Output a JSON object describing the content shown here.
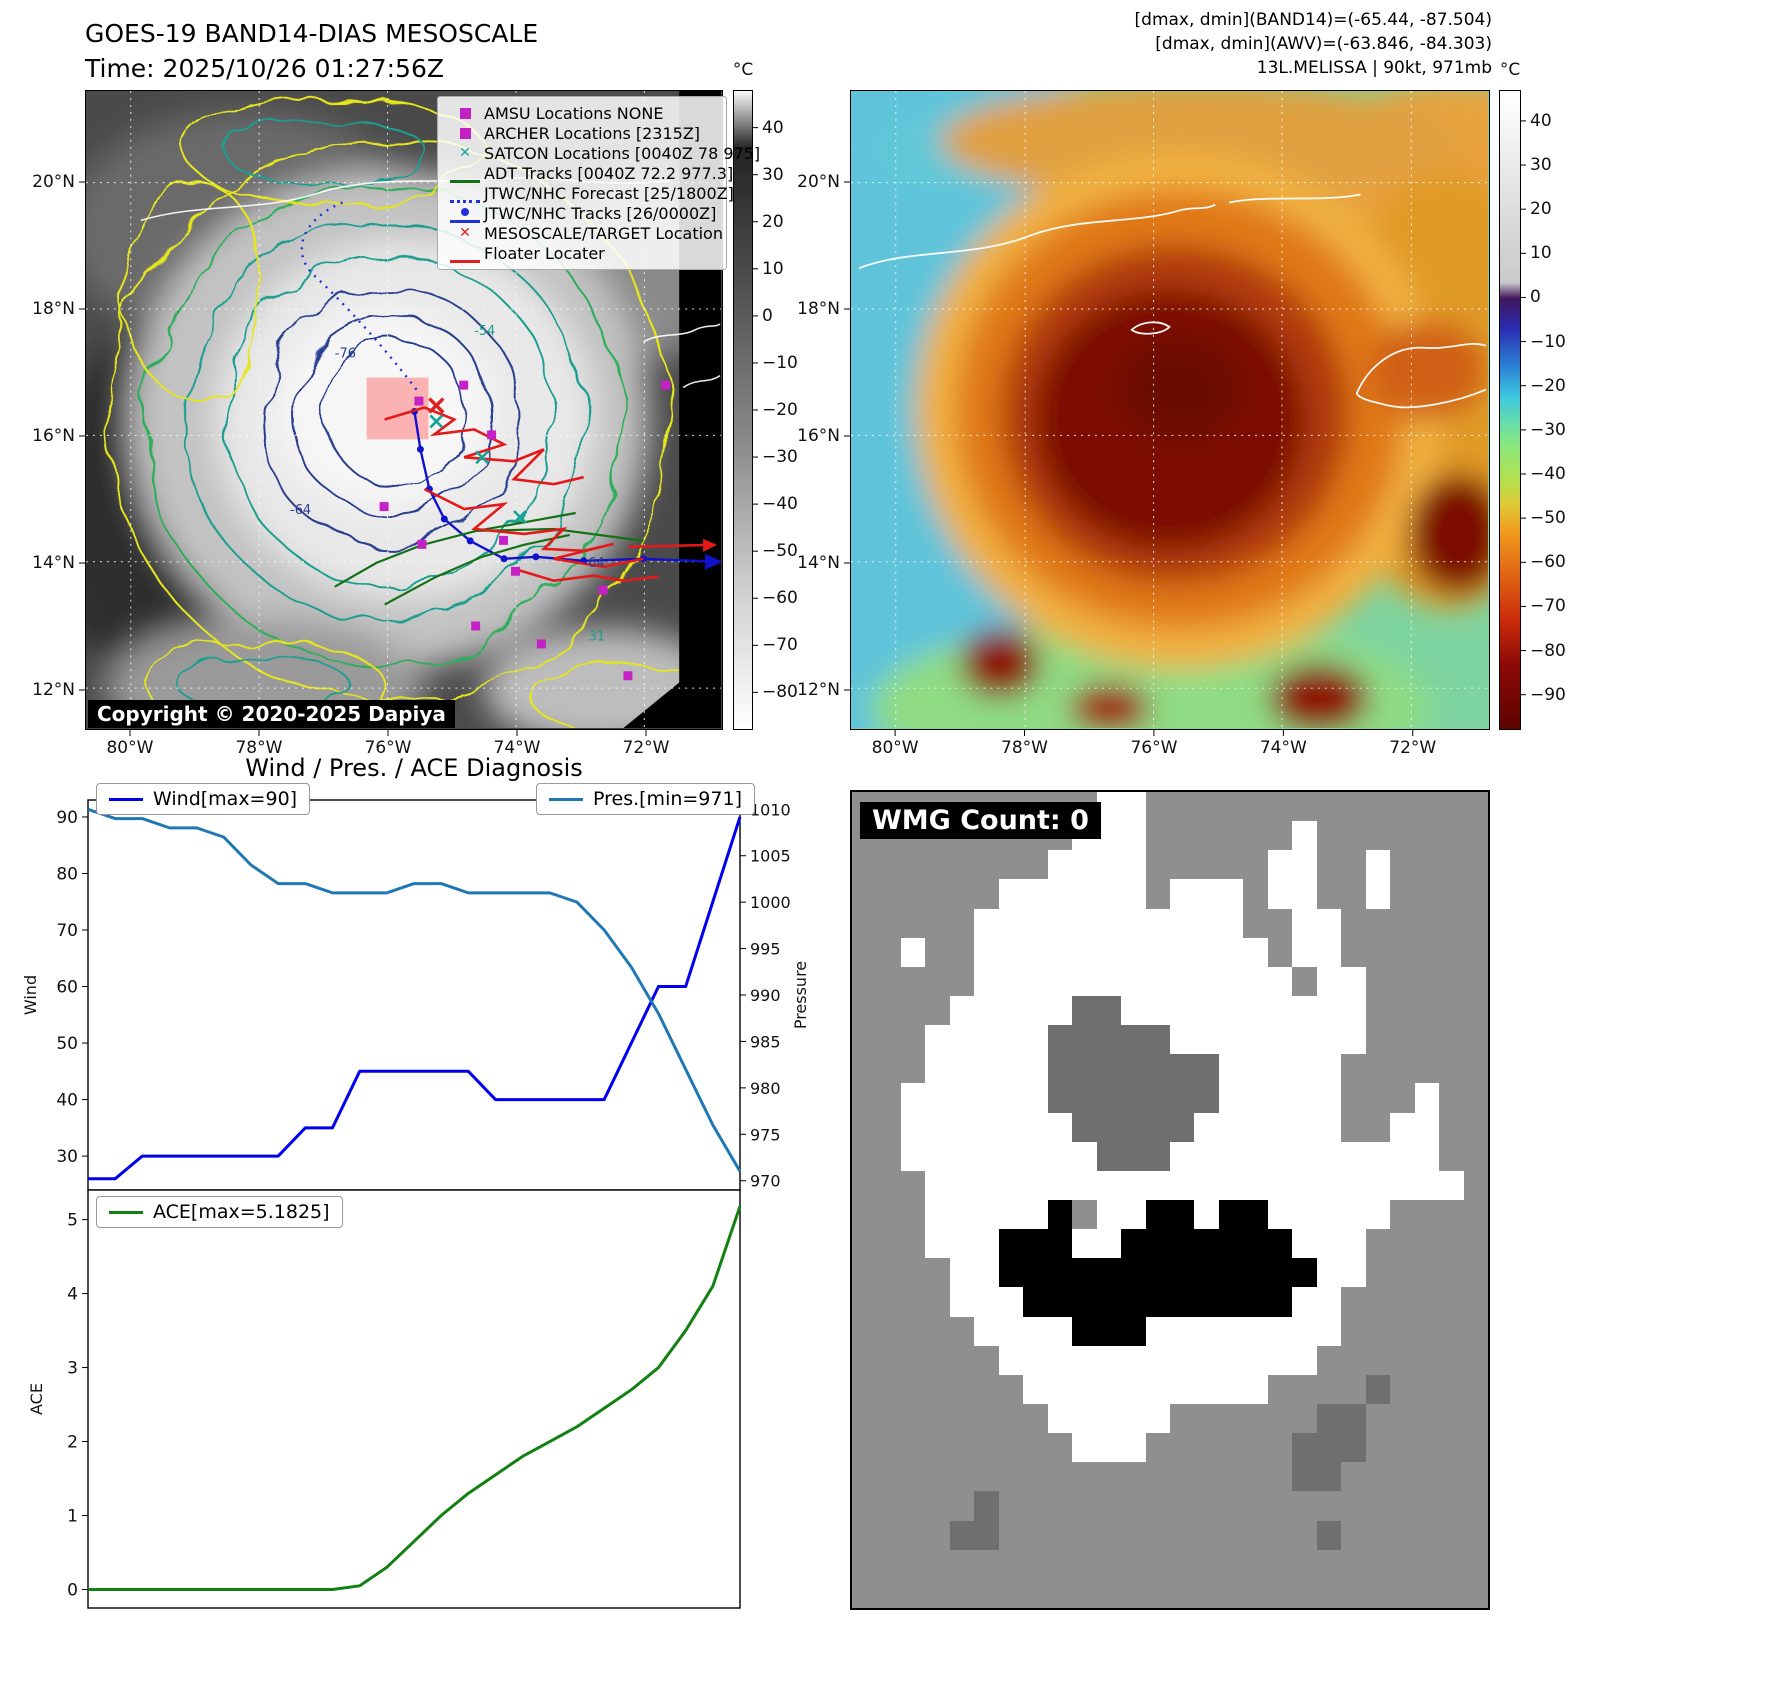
{
  "panel1": {
    "title_line1": "GOES-19 BAND14-DIAS MESOSCALE",
    "title_line2": "Time: 2025/10/26 01:27:56Z",
    "copyright": "Copyright © 2020-2025 Dapiya",
    "x_ticks": [
      "80°W",
      "78°W",
      "76°W",
      "74°W",
      "72°W"
    ],
    "y_ticks": [
      "20°N",
      "18°N",
      "16°N",
      "14°N",
      "12°N"
    ],
    "colorbar": {
      "unit": "°C",
      "ticks": [
        40,
        30,
        20,
        10,
        0,
        -10,
        -20,
        -30,
        -40,
        -50,
        -60,
        -70,
        -80
      ]
    },
    "contour_labels": [
      "-76",
      "-54",
      "-64",
      "-64",
      "31"
    ],
    "legend": [
      {
        "label": "AMSU Locations NONE",
        "marker": "square",
        "color": "#c321c3"
      },
      {
        "label": "ARCHER Locations [2315Z]",
        "marker": "square",
        "color": "#c321c3"
      },
      {
        "label": "SATCON Locations [0040Z 78 975]",
        "marker": "x",
        "color": "#17a398"
      },
      {
        "label": "ADT Tracks [0040Z 72.2 977.3]",
        "marker": "line",
        "color": "#157015"
      },
      {
        "label": "JTWC/NHC Forecast [25/1800Z]",
        "marker": "dotted",
        "color": "#2230d8"
      },
      {
        "label": "JTWC/NHC Tracks [26/0000Z]",
        "marker": "linedot",
        "color": "#2230d8"
      },
      {
        "label": "MESOSCALE/TARGET Location",
        "marker": "x",
        "color": "#e02020"
      },
      {
        "label": "Floater Locater",
        "marker": "line",
        "color": "#e02020"
      }
    ]
  },
  "panel2": {
    "header_line1": "[dmax, dmin](BAND14)=(-65.44, -87.504)",
    "header_line2": "[dmax, dmin](AWV)=(-63.846, -84.303)",
    "header_line3": "13L.MELISSA | 90kt, 971mb",
    "x_ticks": [
      "80°W",
      "78°W",
      "76°W",
      "74°W",
      "72°W"
    ],
    "y_ticks": [
      "20°N",
      "18°N",
      "16°N",
      "14°N",
      "12°N"
    ],
    "colorbar": {
      "unit": "°C",
      "ticks": [
        40,
        30,
        20,
        10,
        0,
        -10,
        -20,
        -30,
        -40,
        -50,
        -60,
        -70,
        -80,
        -90
      ]
    }
  },
  "chart_data": [
    {
      "type": "line",
      "title": "Wind / Pres. / ACE Diagnosis",
      "x": [
        0,
        1,
        2,
        3,
        4,
        5,
        6,
        7,
        8,
        9,
        10,
        11,
        12,
        13,
        14,
        15,
        16,
        17,
        18,
        19,
        20,
        21,
        22,
        23,
        24
      ],
      "series": [
        {
          "name": "Wind[max=90]",
          "axis": "left",
          "color": "#0000ee",
          "values": [
            26,
            26,
            30,
            30,
            30,
            30,
            30,
            30,
            35,
            35,
            45,
            45,
            45,
            45,
            45,
            40,
            40,
            40,
            40,
            40,
            50,
            60,
            60,
            75,
            90
          ]
        },
        {
          "name": "Pres.[min=971]",
          "axis": "right",
          "color": "#1f77b4",
          "values": [
            1010,
            1009,
            1009,
            1008,
            1008,
            1007,
            1004,
            1002,
            1002,
            1001,
            1001,
            1001,
            1002,
            1002,
            1001,
            1001,
            1001,
            1001,
            1000,
            997,
            993,
            988,
            982,
            976,
            971
          ]
        }
      ],
      "ylabel_left": "Wind",
      "ylabel_right": "Pressure",
      "ylim_left": [
        24,
        93
      ],
      "ylim_right": [
        969,
        1011
      ],
      "yticks_left": [
        30,
        40,
        50,
        60,
        70,
        80,
        90
      ],
      "yticks_right": [
        970,
        975,
        980,
        985,
        990,
        995,
        1000,
        1005,
        1010
      ],
      "legend_position": "top-left / top-right",
      "grid": false
    },
    {
      "type": "line",
      "series": [
        {
          "name": "ACE[max=5.1825]",
          "color": "#128012",
          "values": [
            0,
            0,
            0,
            0,
            0,
            0,
            0,
            0,
            0,
            0,
            0.05,
            0.3,
            0.65,
            1.0,
            1.3,
            1.55,
            1.8,
            2.0,
            2.2,
            2.45,
            2.7,
            3.0,
            3.5,
            4.1,
            5.18
          ]
        }
      ],
      "ylabel": "ACE",
      "ylim": [
        -0.25,
        5.4
      ],
      "yticks": [
        0,
        1,
        2,
        3,
        4,
        5
      ],
      "legend_position": "top-left",
      "grid": false
    }
  ],
  "panel4": {
    "wmg_label": "WMG Count: 0",
    "grid": {
      "palette": {
        ".": "#8f8f8f",
        "w": "#ffffff",
        "d": "#6f6f6f",
        "b": "#000000"
      },
      "rows": [
        "..........ww..............",
        ".........www......w.......",
        "........wwww.....ww..w....",
        "......wwwwww.www.ww..w....",
        ".....wwwwwwwwwww..ww......",
        "..w..wwwwwwwwwwww.ww......",
        ".....wwwwwwwwwwwww.ww.....",
        "....wwwwwddwwwwwwwwww.....",
        "...wwwwwdddddwwwwwwww.....",
        "...wwwwwdddddddwwwww......",
        "..wwwwwwdddddddwwwww...w..",
        "..wwwwwwwdddddwwwwww..ww..",
        "..wwwwwwwwdddwwwwwwwwwww..",
        "...wwwwwwwwwwwwwwwwwwwwww.",
        "...wwwwwb.wwbbwbbwwwww....",
        "...wwwbbbwwbbbbbbbwww.....",
        "....wwbbbbbbbbbbbbbww.....",
        "....wwwbbbbbbbbbbbww......",
        ".....wwwwbbbwwwwwwww......",
        "......wwwwwwwwwwwww.......",
        ".......wwwwwwwwww....d....",
        "........wwwww......dd.....",
        ".........www......ddd.....",
        "..................dd......",
        ".....d....................",
        "....dd.............d......",
        "..........................",
        ".........................."
      ]
    }
  }
}
